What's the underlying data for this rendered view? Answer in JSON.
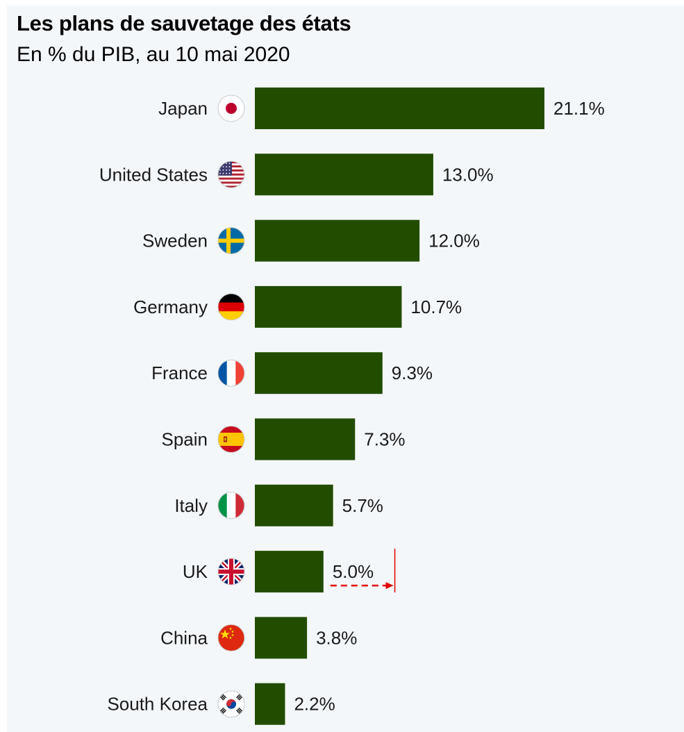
{
  "header": {
    "title": "Les plans de sauvetage des états",
    "subtitle": "En % du PIB, au 10 mai 2020"
  },
  "colors": {
    "bar": "#224d00",
    "panel_background": "#f4f7fa",
    "annotation": "#e00000"
  },
  "chart_data": {
    "type": "bar",
    "orientation": "horizontal",
    "title": "Les plans de sauvetage des états",
    "subtitle": "En % du PIB, au 10 mai 2020",
    "categories": [
      "Japan",
      "United States",
      "Sweden",
      "Germany",
      "France",
      "Spain",
      "Italy",
      "UK",
      "China",
      "South Korea"
    ],
    "values": [
      21.1,
      13.0,
      12.0,
      10.7,
      9.3,
      7.3,
      5.7,
      5.0,
      3.8,
      2.2
    ],
    "value_labels": [
      "21.1%",
      "13.0%",
      "12.0%",
      "10.7%",
      "9.3%",
      "7.3%",
      "5.7%",
      "5.0%",
      "3.8%",
      "2.2%"
    ],
    "flag_icons": [
      "japan-flag-icon",
      "usa-flag-icon",
      "sweden-flag-icon",
      "germany-flag-icon",
      "france-flag-icon",
      "spain-flag-icon",
      "italy-flag-icon",
      "uk-flag-icon",
      "china-flag-icon",
      "south-korea-flag-icon"
    ],
    "xlim": [
      0,
      21.1
    ],
    "grid": false,
    "legend": "none",
    "annotation": {
      "category": "UK",
      "from_value": 5.0,
      "to_value": 10.2,
      "style": "red dashed arrow ending at a vertical red line"
    }
  }
}
